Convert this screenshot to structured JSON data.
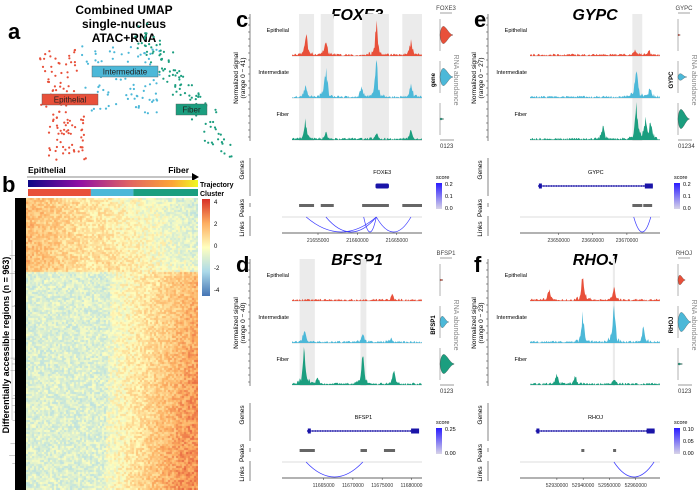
{
  "colors": {
    "Epithelial": "#e8503a",
    "Intermediate": "#4cb8d8",
    "Fiber": "#1b9e7f",
    "link": "#3b3bff",
    "gene": "#1a14a8"
  },
  "panel_a": {
    "letter": "a",
    "title_lines": [
      "Combined UMAP",
      "single-nucleus",
      "ATAC+RNA"
    ],
    "clusters": [
      {
        "name": "Epithelial",
        "count": 110
      },
      {
        "name": "Intermediate",
        "count": 80
      },
      {
        "name": "Fiber",
        "count": 110
      }
    ]
  },
  "panel_b": {
    "letter": "b",
    "start_label": "Epithelial",
    "end_label": "Fiber",
    "trajectory_label": "Trajectory",
    "cluster_label": "Cluster",
    "ylabel": "Differentially accessible regions (n = 963)",
    "colorbar_ticks": [
      "4",
      "2",
      "0",
      "-2",
      "-4"
    ],
    "cluster_fractions": {
      "Epithelial": 0.37,
      "Intermediate": 0.25,
      "Fiber": 0.38
    }
  },
  "chart_data": [
    {
      "type": "area",
      "letter": "c",
      "gene": "FOXE3",
      "ylabel": [
        "Normalized signal",
        "(range 0 − 41)"
      ],
      "range_max": 41,
      "tracks": [
        "Epithelial",
        "Intermediate",
        "Fiber"
      ],
      "domain": [
        21651700,
        21668200
      ],
      "ticks": [
        21655000,
        21660000,
        21665000
      ],
      "tick_labels": [
        "21655000",
        "21660000",
        "21665000"
      ],
      "highlights": [
        [
          21652600,
          21654500
        ],
        [
          21655350,
          21657000
        ],
        [
          21660600,
          21664000
        ],
        [
          21665700,
          21668200
        ]
      ],
      "peaks_signal": {
        "Epithelial": [
          [
            21653500,
            0.5
          ],
          [
            21656000,
            0.45
          ],
          [
            21662400,
            0.85
          ],
          [
            21666800,
            0.4
          ]
        ],
        "Intermediate": [
          [
            21653400,
            0.3
          ],
          [
            21656000,
            0.8
          ],
          [
            21660500,
            0.25
          ],
          [
            21662400,
            0.9
          ],
          [
            21666800,
            0.35
          ]
        ],
        "Fiber": [
          [
            21653400,
            0.45
          ],
          [
            21656000,
            0.2
          ],
          [
            21662400,
            0.15
          ],
          [
            21666800,
            0.22
          ]
        ]
      },
      "gene_span": [
        21662300,
        21664000
      ],
      "gene_style": "compact",
      "peak_boxes": [
        [
          21652600,
          21654500
        ],
        [
          21655350,
          21657000
        ],
        [
          21660600,
          21664000
        ],
        [
          21665700,
          21668200
        ]
      ],
      "links": [
        [
          21653500,
          21662400
        ],
        [
          21656000,
          21662400
        ],
        [
          21660800,
          21662400
        ],
        [
          21662400,
          21666800
        ]
      ],
      "track_labels": {
        "genes": "Genes",
        "peaks": "Peaks",
        "links": "Links"
      },
      "score": {
        "label": "score",
        "ticks": [
          "0.2",
          "0.1",
          "0.0"
        ]
      },
      "violins": {
        "label": "gene",
        "side_label": "RNA abundance",
        "axis": "0123",
        "groups": [
          {
            "name": "Epithelial",
            "max": 0.9,
            "thick": 0.9
          },
          {
            "name": "Intermediate",
            "max": 0.9,
            "thick": 0.9
          },
          {
            "name": "Fiber",
            "max": 0.25,
            "thick": 0.1
          }
        ]
      }
    },
    {
      "type": "area",
      "letter": "d",
      "gene": "BFSP1",
      "ylabel": [
        "Normalized signal",
        "(range 0 − 40)"
      ],
      "range_max": 40,
      "tracks": [
        "Epithelial",
        "Intermediate",
        "Fiber"
      ],
      "domain": [
        11659600,
        11681800
      ],
      "ticks": [
        11665000,
        11670000,
        11675000,
        11680000
      ],
      "tick_labels": [
        "11665000",
        "11670000",
        "11675000",
        "11680000"
      ],
      "highlights": [
        [
          11660900,
          11663500
        ],
        [
          11671300,
          11672300
        ]
      ],
      "peaks_signal": {
        "Epithelial": [
          [
            11676700,
            0.15
          ]
        ],
        "Intermediate": [
          [
            11661700,
            0.35
          ],
          [
            11671700,
            0.22
          ],
          [
            11676500,
            0.1
          ]
        ],
        "Fiber": [
          [
            11661700,
            0.95
          ],
          [
            11664000,
            0.2
          ],
          [
            11671700,
            0.8
          ],
          [
            11677000,
            0.35
          ]
        ]
      },
      "gene_span": [
        11662300,
        11681300
      ],
      "gene_style": "long",
      "peak_boxes": [
        [
          11660900,
          11663500
        ],
        [
          11671300,
          11672400
        ],
        [
          11675300,
          11677200
        ]
      ],
      "links": [
        [
          11662000,
          11671700
        ]
      ],
      "track_labels": {
        "genes": "Genes",
        "peaks": "Peaks",
        "links": "Links"
      },
      "score": {
        "label": "score",
        "ticks": [
          "0.25",
          "0.00"
        ]
      },
      "violins": {
        "label": "BFSP1",
        "side_label": "RNA abundance",
        "axis": "0123",
        "groups": [
          {
            "name": "Epithelial",
            "max": 0.2,
            "thick": 0.08
          },
          {
            "name": "Intermediate",
            "max": 0.6,
            "thick": 0.6
          },
          {
            "name": "Fiber",
            "max": 1.0,
            "thick": 1.0
          }
        ]
      }
    },
    {
      "type": "area",
      "letter": "e",
      "gene": "GYPC",
      "ylabel": [
        "Normalized signal",
        "(range 0 − 27)"
      ],
      "range_max": 27,
      "tracks": [
        "Epithelial",
        "Intermediate",
        "Fiber"
      ],
      "domain": [
        23641600,
        23679700
      ],
      "ticks": [
        23650000,
        23660000,
        23670000
      ],
      "tick_labels": [
        "23650000",
        "23660000",
        "23670000"
      ],
      "highlights": [
        [
          23671600,
          23674500
        ]
      ],
      "peaks_signal": {
        "Epithelial": [
          [
            23672500,
            0.15
          ],
          [
            23676500,
            0.12
          ]
        ],
        "Intermediate": [
          [
            23672800,
            0.85
          ],
          [
            23676800,
            0.25
          ]
        ],
        "Fiber": [
          [
            23663000,
            0.35
          ],
          [
            23672800,
            0.95
          ],
          [
            23675500,
            0.5
          ],
          [
            23677000,
            0.45
          ]
        ]
      },
      "gene_span": [
        23644200,
        23677600
      ],
      "gene_style": "long",
      "peak_boxes": [
        [
          23671600,
          23674500
        ],
        [
          23674800,
          23677400
        ]
      ],
      "links": [
        [
          23672000,
          23677000
        ]
      ],
      "track_labels": {
        "genes": "Genes",
        "peaks": "Peaks",
        "links": "Links"
      },
      "score": {
        "label": "score",
        "ticks": [
          "0.2",
          "0.1",
          "0.0"
        ]
      },
      "violins": {
        "label": "GYPC",
        "side_label": "RNA abundance",
        "axis": "01234",
        "groups": [
          {
            "name": "Epithelial",
            "max": 0.15,
            "thick": 0.08
          },
          {
            "name": "Intermediate",
            "max": 0.6,
            "thick": 0.35
          },
          {
            "name": "Fiber",
            "max": 0.8,
            "thick": 1.0
          }
        ]
      }
    },
    {
      "type": "area",
      "letter": "f",
      "gene": "RHOJ",
      "ylabel": [
        "Normalized signal",
        "(range 0 − 23)"
      ],
      "range_max": 23,
      "tracks": [
        "Epithelial",
        "Intermediate",
        "Fiber"
      ],
      "domain": [
        52919760,
        52969250
      ],
      "ticks": [
        52930000,
        52940000,
        52950000,
        52960000
      ],
      "tick_labels": [
        "52930000",
        "52940000",
        "52950000",
        "52960000"
      ],
      "highlights": [
        [
          52951300,
          52952100
        ]
      ],
      "peaks_signal": {
        "Epithelial": [
          [
            52939800,
            0.75
          ],
          [
            52951700,
            0.35
          ],
          [
            52927000,
            0.3
          ]
        ],
        "Intermediate": [
          [
            52939800,
            0.7
          ],
          [
            52951700,
            0.95
          ],
          [
            52963000,
            0.4
          ]
        ],
        "Fiber": [
          [
            52930000,
            0.25
          ],
          [
            52937000,
            0.2
          ],
          [
            52951700,
            0.15
          ]
        ]
      },
      "gene_span": [
        52922200,
        52967200
      ],
      "gene_style": "long",
      "peak_boxes": [
        [
          52939300,
          52940400
        ],
        [
          52951400,
          52952000
        ]
      ],
      "links": [
        [
          52951700,
          52967000
        ]
      ],
      "track_labels": {
        "genes": "Genes",
        "peaks": "Peaks",
        "links": "Links"
      },
      "score": {
        "label": "score",
        "ticks": [
          "0.10",
          "0.05",
          "0.00"
        ]
      },
      "violins": {
        "label": "RHOJ",
        "side_label": "RNA abundance",
        "axis": "0123",
        "groups": [
          {
            "name": "Epithelial",
            "max": 0.5,
            "thick": 0.5
          },
          {
            "name": "Intermediate",
            "max": 0.9,
            "thick": 1.0
          },
          {
            "name": "Fiber",
            "max": 0.3,
            "thick": 0.1
          }
        ]
      }
    }
  ]
}
